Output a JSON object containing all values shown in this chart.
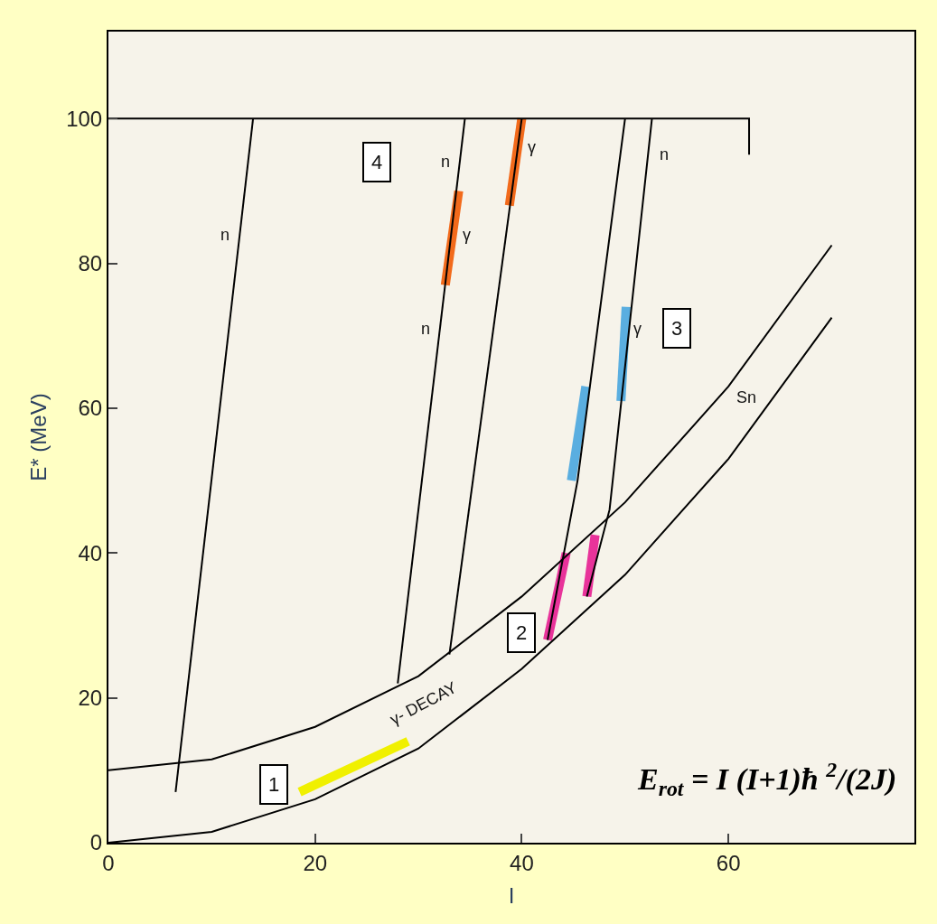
{
  "chart_data": {
    "type": "line",
    "xlabel": "I",
    "ylabel": "E* (MeV)",
    "xlim": [
      0,
      78
    ],
    "ylim": [
      0,
      112
    ],
    "xticks": [
      0,
      20,
      40,
      60
    ],
    "yticks": [
      0,
      20,
      40,
      60,
      80,
      100
    ],
    "grid": false,
    "marker": "none",
    "line_style": "solid",
    "series": [
      {
        "color": "#f0f000",
        "x": [
          18.5,
          29
        ],
        "values": [
          7,
          14
        ]
      },
      {
        "color": "#f26a1b",
        "x": [
          33.9,
          32.6
        ],
        "values": [
          90,
          77
        ]
      },
      {
        "color": "#f26a1b",
        "x": [
          40,
          38.8
        ],
        "values": [
          100,
          88
        ]
      },
      {
        "color": "#5aaee0",
        "x": [
          46.2,
          44.8
        ],
        "values": [
          63,
          50
        ]
      },
      {
        "color": "#5aaee0",
        "x": [
          50.1,
          49.6
        ],
        "values": [
          74,
          61
        ]
      },
      {
        "color": "#e8339a",
        "x": [
          44.3,
          42.5
        ],
        "values": [
          40,
          28
        ]
      },
      {
        "color": "#e8339a",
        "x": [
          47.1,
          46.3
        ],
        "values": [
          42.5,
          34
        ]
      },
      {
        "color": "#000000",
        "x": [
          0,
          10,
          20,
          30,
          40,
          50,
          60,
          70
        ],
        "values": [
          0,
          1.5,
          6,
          13,
          24,
          37,
          53,
          72.5
        ]
      },
      {
        "color": "#000000",
        "x": [
          0,
          10,
          20,
          30,
          40,
          50,
          60,
          70
        ],
        "values": [
          10,
          11.5,
          16,
          23,
          34,
          47,
          63,
          82.5
        ]
      },
      {
        "color": "#000000",
        "x": [
          0,
          62,
          62
        ],
        "values": [
          100,
          100,
          95
        ]
      },
      {
        "color": "#000000",
        "x": [
          14,
          6.5
        ],
        "values": [
          100,
          7
        ]
      },
      {
        "color": "#000000",
        "x": [
          34.5,
          28
        ],
        "values": [
          100,
          22
        ]
      },
      {
        "color": "#000000",
        "x": [
          40,
          33
        ],
        "values": [
          100,
          26
        ]
      },
      {
        "color": "#000000",
        "x": [
          50,
          45.4,
          42.5
        ],
        "values": [
          100,
          50,
          28
        ]
      },
      {
        "color": "#000000",
        "x": [
          52.6,
          48.5,
          46.3
        ],
        "values": [
          100,
          46,
          34
        ]
      }
    ],
    "annotations": [
      {
        "text": "1",
        "x": 16,
        "y": 8
      },
      {
        "text": "2",
        "x": 40,
        "y": 29
      },
      {
        "text": "3",
        "x": 55,
        "y": 71
      },
      {
        "text": "4",
        "x": 26,
        "y": 94
      },
      {
        "text": "n",
        "x": 12.7,
        "y": 84
      },
      {
        "text": "n",
        "x": 34.0,
        "y": 94
      },
      {
        "text": "n",
        "x": 32.1,
        "y": 71
      },
      {
        "text": "n",
        "x": 52.2,
        "y": 95
      },
      {
        "text": "γ",
        "x": 33.3,
        "y": 84
      },
      {
        "text": "γ",
        "x": 39.6,
        "y": 96
      },
      {
        "text": "γ",
        "x": 50.0,
        "y": 71
      },
      {
        "text": "Sn",
        "x": 60,
        "y": 63
      },
      {
        "text": "γ- DECAY",
        "x": 30,
        "y": 23
      },
      "E$_{rot}$ = I (I+1)ħ $^{2}$/(2J)"
    ]
  }
}
